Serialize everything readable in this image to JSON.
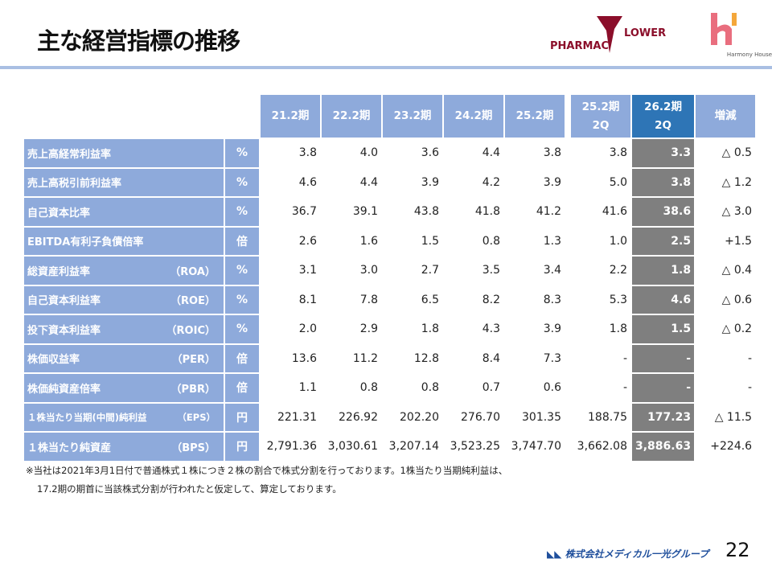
{
  "title": "主な経営指標の推移",
  "logos": {
    "pharmacy_flower": "PHARMAC FLOWER",
    "pharmacy_left": "PHARMAC",
    "pharmacy_right": "LOWER",
    "harmony": "Harmony House"
  },
  "headers": [
    "21.2期",
    "22.2期",
    "23.2期",
    "24.2期",
    "25.2期",
    "25.2期\n2Q",
    "26.2期\n2Q",
    "増減"
  ],
  "rows": [
    {
      "label": "売上高経常利益率",
      "abbr": "",
      "unit": "%",
      "values": [
        "3.8",
        "4.0",
        "3.6",
        "4.4",
        "3.8",
        "3.8",
        "3.3",
        "△ 0.5"
      ]
    },
    {
      "label": "売上高税引前利益率",
      "abbr": "",
      "unit": "%",
      "values": [
        "4.6",
        "4.4",
        "3.9",
        "4.2",
        "3.9",
        "5.0",
        "3.8",
        "△ 1.2"
      ]
    },
    {
      "label": "自己資本比率",
      "abbr": "",
      "unit": "%",
      "values": [
        "36.7",
        "39.1",
        "43.8",
        "41.8",
        "41.2",
        "41.6",
        "38.6",
        "△ 3.0"
      ]
    },
    {
      "label": "EBITDA有利子負債倍率",
      "abbr": "",
      "unit": "倍",
      "values": [
        "2.6",
        "1.6",
        "1.5",
        "0.8",
        "1.3",
        "1.0",
        "2.5",
        "+1.5"
      ]
    },
    {
      "label": "総資産利益率",
      "abbr": "（ROA）",
      "unit": "%",
      "values": [
        "3.1",
        "3.0",
        "2.7",
        "3.5",
        "3.4",
        "2.2",
        "1.8",
        "△ 0.4"
      ]
    },
    {
      "label": "自己資本利益率",
      "abbr": "（ROE）",
      "unit": "%",
      "values": [
        "8.1",
        "7.8",
        "6.5",
        "8.2",
        "8.3",
        "5.3",
        "4.6",
        "△ 0.6"
      ]
    },
    {
      "label": "投下資本利益率",
      "abbr": "（ROIC）",
      "unit": "%",
      "values": [
        "2.0",
        "2.9",
        "1.8",
        "4.3",
        "3.9",
        "1.8",
        "1.5",
        "△ 0.2"
      ]
    },
    {
      "label": "株価収益率",
      "abbr": "（PER）",
      "unit": "倍",
      "values": [
        "13.6",
        "11.2",
        "12.8",
        "8.4",
        "7.3",
        "-",
        "-",
        "-"
      ]
    },
    {
      "label": "株価純資産倍率",
      "abbr": "（PBR）",
      "unit": "倍",
      "values": [
        "1.1",
        "0.8",
        "0.8",
        "0.7",
        "0.6",
        "-",
        "-",
        "-"
      ]
    },
    {
      "label": "１株当たり当期(中間)純利益",
      "abbr": "（EPS）",
      "unit": "円",
      "values": [
        "221.31",
        "226.92",
        "202.20",
        "276.70",
        "301.35",
        "188.75",
        "177.23",
        "△ 11.5"
      ]
    },
    {
      "label": "１株当たり純資産",
      "abbr": "（BPS）",
      "unit": "円",
      "values": [
        "2,791.36",
        "3,030.61",
        "3,207.14",
        "3,523.25",
        "3,747.70",
        "3,662.08",
        "3,886.63",
        "+224.6"
      ]
    }
  ],
  "notes": [
    "※当社は2021年3月1日付で普通株式１株につき２株の割合で株式分割を行っております。1株当たり当期純利益は、",
    "17.2期の期首に当該株式分割が行われたと仮定して、算定しております。"
  ],
  "footer": "株式会社メディカル一光グループ",
  "page": "22",
  "colors": {
    "header": "#8eaadb",
    "current_header": "#2e75b6",
    "current_cell": "#7f7f7f"
  }
}
